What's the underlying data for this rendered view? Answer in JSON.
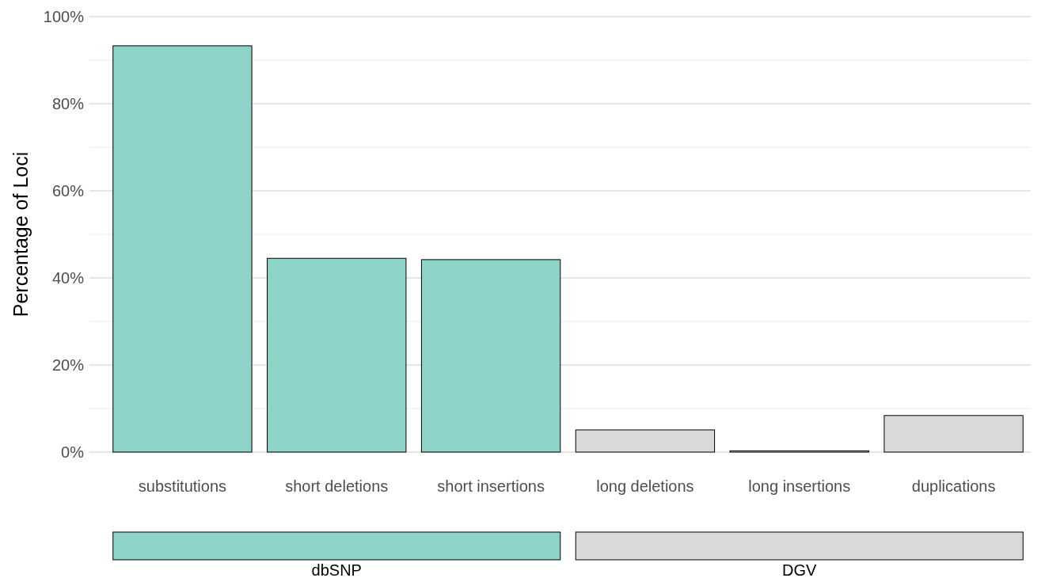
{
  "chart_data": {
    "type": "bar",
    "ylabel": "Percentage of Loci",
    "categories": [
      "substitutions",
      "short deletions",
      "short insertions",
      "long deletions",
      "long insertions",
      "duplications"
    ],
    "series": [
      {
        "color": "#8dd3c7",
        "values": [
          93.3,
          44.5,
          44.2,
          null,
          null,
          null
        ]
      },
      {
        "color": "#d9d9d9",
        "values": [
          null,
          null,
          null,
          5.1,
          0.3,
          8.4
        ]
      }
    ],
    "stacked": true,
    "ylim": [
      0,
      100
    ],
    "yticks": [
      {
        "value": 0,
        "label": "0%"
      },
      {
        "value": 10,
        "label": null
      },
      {
        "value": 20,
        "label": "20%"
      },
      {
        "value": 30,
        "label": null
      },
      {
        "value": 40,
        "label": "40%"
      },
      {
        "value": 50,
        "label": null
      },
      {
        "value": 60,
        "label": "60%"
      },
      {
        "value": 70,
        "label": null
      },
      {
        "value": 80,
        "label": "80%"
      },
      {
        "value": 90,
        "label": null
      },
      {
        "value": 100,
        "label": "100%"
      }
    ],
    "grid": true,
    "annotations": [
      "dbSNP",
      "DGV"
    ]
  }
}
